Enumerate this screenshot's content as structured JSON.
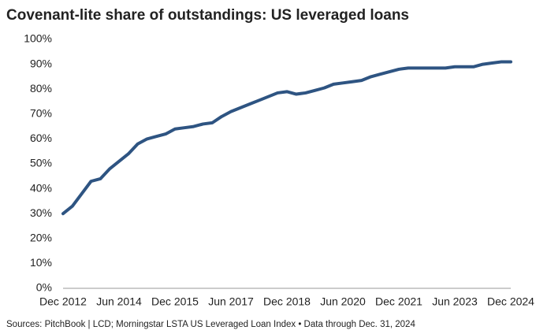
{
  "chart_data": {
    "type": "line",
    "title": "Covenant-lite share of outstandings: US leveraged loans",
    "source": "Sources: PitchBook | LCD; Morningstar LSTA US Leveraged Loan Index • Data through Dec. 31, 2024",
    "categories": [
      "Dec 2012",
      null,
      null,
      null,
      null,
      null,
      "Jun 2014",
      null,
      null,
      null,
      null,
      null,
      "Dec 2015",
      null,
      null,
      null,
      null,
      null,
      "Jun 2017",
      null,
      null,
      null,
      null,
      null,
      "Dec 2018",
      null,
      null,
      null,
      null,
      null,
      "Jun 2020",
      null,
      null,
      null,
      null,
      null,
      "Dec 2021",
      null,
      null,
      null,
      null,
      null,
      "Jun 2023",
      null,
      null,
      null,
      null,
      null,
      "Dec 2024"
    ],
    "series": [
      {
        "color": "#2e5482",
        "values": [
          30,
          33,
          38,
          43,
          44,
          48,
          51,
          54,
          58,
          60,
          61,
          62,
          64,
          64.5,
          65,
          66,
          66.5,
          69,
          71,
          72.5,
          74,
          75.5,
          77,
          78.5,
          79,
          78,
          78.5,
          79.5,
          80.5,
          82,
          82.5,
          83,
          83.5,
          85,
          86,
          87,
          88,
          88.5,
          88.5,
          88.5,
          88.5,
          88.5,
          89,
          89,
          89,
          90,
          90.5,
          91,
          91
        ]
      }
    ],
    "ylim": [
      0,
      100
    ],
    "yticks": [
      {
        "value": 0,
        "label": "0%"
      },
      {
        "value": 10,
        "label": "10%"
      },
      {
        "value": 20,
        "label": "20%"
      },
      {
        "value": 30,
        "label": "30%"
      },
      {
        "value": 40,
        "label": "40%"
      },
      {
        "value": 50,
        "label": "50%"
      },
      {
        "value": 60,
        "label": "60%"
      },
      {
        "value": 70,
        "label": "70%"
      },
      {
        "value": 80,
        "label": "80%"
      },
      {
        "value": 90,
        "label": "90%"
      },
      {
        "value": 100,
        "label": "100%"
      }
    ],
    "grid": false
  }
}
